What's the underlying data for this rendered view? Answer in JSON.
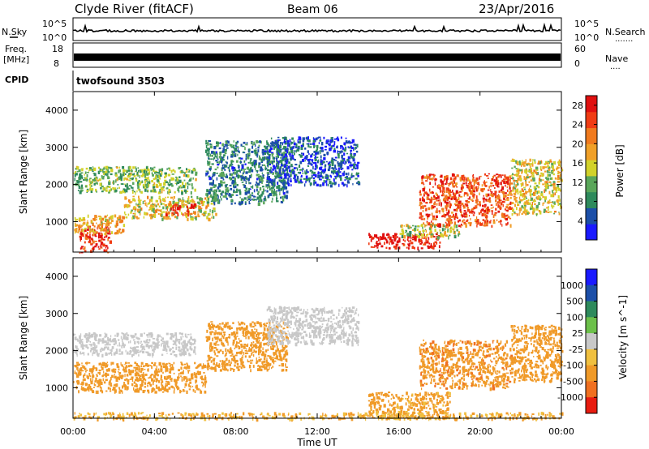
{
  "header": {
    "title_left": "Clyde River (fitACF)",
    "title_center": "Beam 06",
    "title_right": "23/Apr/2016"
  },
  "noise_panel": {
    "left_label": "N.Sky",
    "left_ticks": [
      "10^5",
      "10^0"
    ],
    "right_ticks": [
      "10^5",
      "10^0"
    ],
    "right_label": "N.Search",
    "right_dots": "......."
  },
  "freq_panel": {
    "left_label_1": "Freq.",
    "left_label_2": "[MHz]",
    "left_ticks": [
      "18",
      "8"
    ],
    "right_ticks": [
      "60",
      "0"
    ],
    "right_label": "Nave",
    "right_dots": "...."
  },
  "cpid_panel": {
    "label": "CPID",
    "value": "twofsound 3503"
  },
  "colors": {
    "power_scale": [
      "#1a1aff",
      "#1c4fa8",
      "#2e8a5c",
      "#5aa65a",
      "#d2d22a",
      "#f0a028",
      "#f07a1e",
      "#f03c14",
      "#e01010"
    ],
    "velocity_scale": [
      "#1a1aff",
      "#1c4fa8",
      "#2e8a5c",
      "#6cc04a",
      "#c8c8c8",
      "#f0c040",
      "#f09a28",
      "#f07020",
      "#e81c10"
    ]
  },
  "chart_data": [
    {
      "type": "heatmap",
      "title": "",
      "xlabel": "",
      "ylabel": "Slant Range [km]",
      "x_ticks": [
        "00:00",
        "04:00",
        "08:00",
        "12:00",
        "16:00",
        "20:00",
        "00:00"
      ],
      "y_ticks": [
        "1000",
        "2000",
        "3000",
        "4000"
      ],
      "xlim_hours": [
        0,
        24
      ],
      "ylim_km": [
        180,
        4500
      ],
      "colorbar": {
        "label": "Power [dB]",
        "ticks": [
          "4",
          "8",
          "12",
          "16",
          "20",
          "24",
          "28"
        ],
        "range": [
          0,
          30
        ]
      },
      "scatter_regions": [
        {
          "hours": [
            0.3,
            1.8
          ],
          "km": [
            180,
            900
          ],
          "value": 26
        },
        {
          "hours": [
            0.0,
            2.5
          ],
          "km": [
            700,
            1200
          ],
          "value": 18
        },
        {
          "hours": [
            2.5,
            7.0
          ],
          "km": [
            1100,
            1700
          ],
          "value": 16
        },
        {
          "hours": [
            4.5,
            6.0
          ],
          "km": [
            1200,
            1500
          ],
          "value": 26
        },
        {
          "hours": [
            0.0,
            6.0
          ],
          "km": [
            1800,
            2500
          ],
          "value": 12
        },
        {
          "hours": [
            6.5,
            10.5
          ],
          "km": [
            1500,
            3200
          ],
          "value": 8
        },
        {
          "hours": [
            9.5,
            14.0
          ],
          "km": [
            2000,
            3300
          ],
          "value": 5
        },
        {
          "hours": [
            14.5,
            18.0
          ],
          "km": [
            300,
            700
          ],
          "value": 28
        },
        {
          "hours": [
            16.0,
            19.0
          ],
          "km": [
            600,
            950
          ],
          "value": 14
        },
        {
          "hours": [
            17.0,
            21.5
          ],
          "km": [
            900,
            2300
          ],
          "value": 24
        },
        {
          "hours": [
            21.5,
            24.0
          ],
          "km": [
            1200,
            2700
          ],
          "value": 16
        }
      ]
    },
    {
      "type": "heatmap",
      "title": "",
      "xlabel": "Time UT",
      "ylabel": "Slant Range [km]",
      "x_ticks": [
        "00:00",
        "04:00",
        "08:00",
        "12:00",
        "16:00",
        "20:00",
        "00:00"
      ],
      "y_ticks": [
        "1000",
        "2000",
        "3000",
        "4000"
      ],
      "xlim_hours": [
        0,
        24
      ],
      "ylim_km": [
        180,
        4500
      ],
      "colorbar": {
        "label": "Velocity [m s^-1]",
        "ticks": [
          "1000",
          "500",
          "100",
          "25",
          "-25",
          "-100",
          "-500",
          "-1000"
        ]
      },
      "scatter_regions": [
        {
          "hours": [
            0.0,
            6.5
          ],
          "km": [
            900,
            1700
          ],
          "value": -300
        },
        {
          "hours": [
            6.5,
            10.5
          ],
          "km": [
            1500,
            2800
          ],
          "value": -200
        },
        {
          "hours": [
            0.0,
            6.0
          ],
          "km": [
            1900,
            2500
          ],
          "value": 0
        },
        {
          "hours": [
            9.5,
            14.0
          ],
          "km": [
            2200,
            3200
          ],
          "value": 0
        },
        {
          "hours": [
            14.5,
            18.5
          ],
          "km": [
            200,
            900
          ],
          "value": -150
        },
        {
          "hours": [
            0.0,
            24.0
          ],
          "km": [
            180,
            350
          ],
          "value": -100
        },
        {
          "hours": [
            17.0,
            21.5
          ],
          "km": [
            1000,
            2300
          ],
          "value": -400
        },
        {
          "hours": [
            21.5,
            24.0
          ],
          "km": [
            1200,
            2700
          ],
          "value": -300
        }
      ]
    }
  ]
}
